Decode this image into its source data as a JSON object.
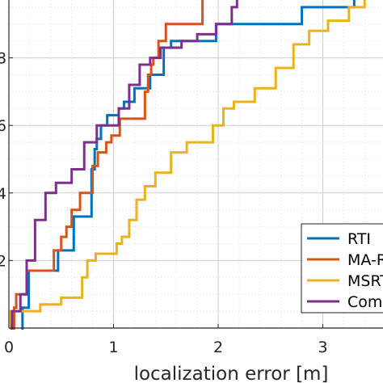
{
  "chart_data": {
    "type": "line",
    "subtype": "empirical CDF (stairs)",
    "xlabel": "localization error [m]",
    "ylabel": "",
    "xlim": [
      0,
      3.55
    ],
    "ylim": [
      0,
      1.0
    ],
    "x_ticks": [
      "0",
      "1",
      "2",
      "3"
    ],
    "y_ticks": [
      ".2",
      ".4",
      ".6",
      ".8"
    ],
    "grid": "major+minor",
    "legend_position": "bottom-right",
    "series": [
      {
        "name": "RTI",
        "color": "#0072BD",
        "x": [
          0.13,
          0.19,
          0.35,
          0.47,
          0.62,
          0.71,
          0.79,
          0.82,
          0.84,
          0.88,
          0.94,
          1.05,
          1.1,
          1.2,
          1.35,
          1.48,
          1.55,
          1.98,
          2.05,
          2.17,
          2.38,
          2.8,
          2.9,
          3.3
        ],
        "y": [
          0.06,
          0.17,
          0.17,
          0.23,
          0.33,
          0.33,
          0.47,
          0.53,
          0.56,
          0.6,
          0.63,
          0.65,
          0.67,
          0.71,
          0.75,
          0.83,
          0.85,
          0.9,
          0.9,
          0.9,
          0.9,
          0.95,
          0.95,
          1.0
        ]
      },
      {
        "name": "MA-RTI",
        "color": "#D95319",
        "x": [
          0.05,
          0.07,
          0.17,
          0.25,
          0.43,
          0.5,
          0.55,
          0.6,
          0.68,
          0.8,
          0.85,
          0.93,
          0.98,
          1.06,
          1.3,
          1.33,
          1.36,
          1.38,
          1.43,
          1.5,
          1.85
        ],
        "y": [
          0.06,
          0.1,
          0.17,
          0.17,
          0.23,
          0.27,
          0.3,
          0.35,
          0.4,
          0.48,
          0.52,
          0.55,
          0.57,
          0.62,
          0.7,
          0.75,
          0.78,
          0.8,
          0.85,
          0.9,
          1.0
        ]
      },
      {
        "name": "MSRTI",
        "color": "#EDB120",
        "x": [
          0.02,
          0.3,
          0.5,
          0.7,
          0.75,
          0.83,
          1.03,
          1.08,
          1.15,
          1.22,
          1.3,
          1.4,
          1.55,
          1.7,
          1.95,
          2.05,
          2.15,
          2.35,
          2.55,
          2.72,
          2.87,
          3.05,
          3.25,
          3.4
        ],
        "y": [
          0.05,
          0.07,
          0.09,
          0.15,
          0.2,
          0.22,
          0.25,
          0.27,
          0.32,
          0.38,
          0.42,
          0.46,
          0.52,
          0.55,
          0.6,
          0.65,
          0.67,
          0.71,
          0.77,
          0.84,
          0.88,
          0.91,
          0.95,
          1.0
        ]
      },
      {
        "name": "Combined",
        "color": "#7E2F8E",
        "x": [
          0.03,
          0.11,
          0.17,
          0.25,
          0.35,
          0.45,
          0.6,
          0.72,
          0.84,
          1.05,
          1.15,
          1.25,
          1.35,
          1.45,
          1.65,
          1.8,
          1.98,
          2.13,
          2.18
        ],
        "y": [
          0.05,
          0.1,
          0.2,
          0.32,
          0.4,
          0.43,
          0.47,
          0.55,
          0.6,
          0.65,
          0.72,
          0.78,
          0.8,
          0.83,
          0.85,
          0.87,
          0.9,
          0.95,
          1.0
        ]
      }
    ]
  }
}
